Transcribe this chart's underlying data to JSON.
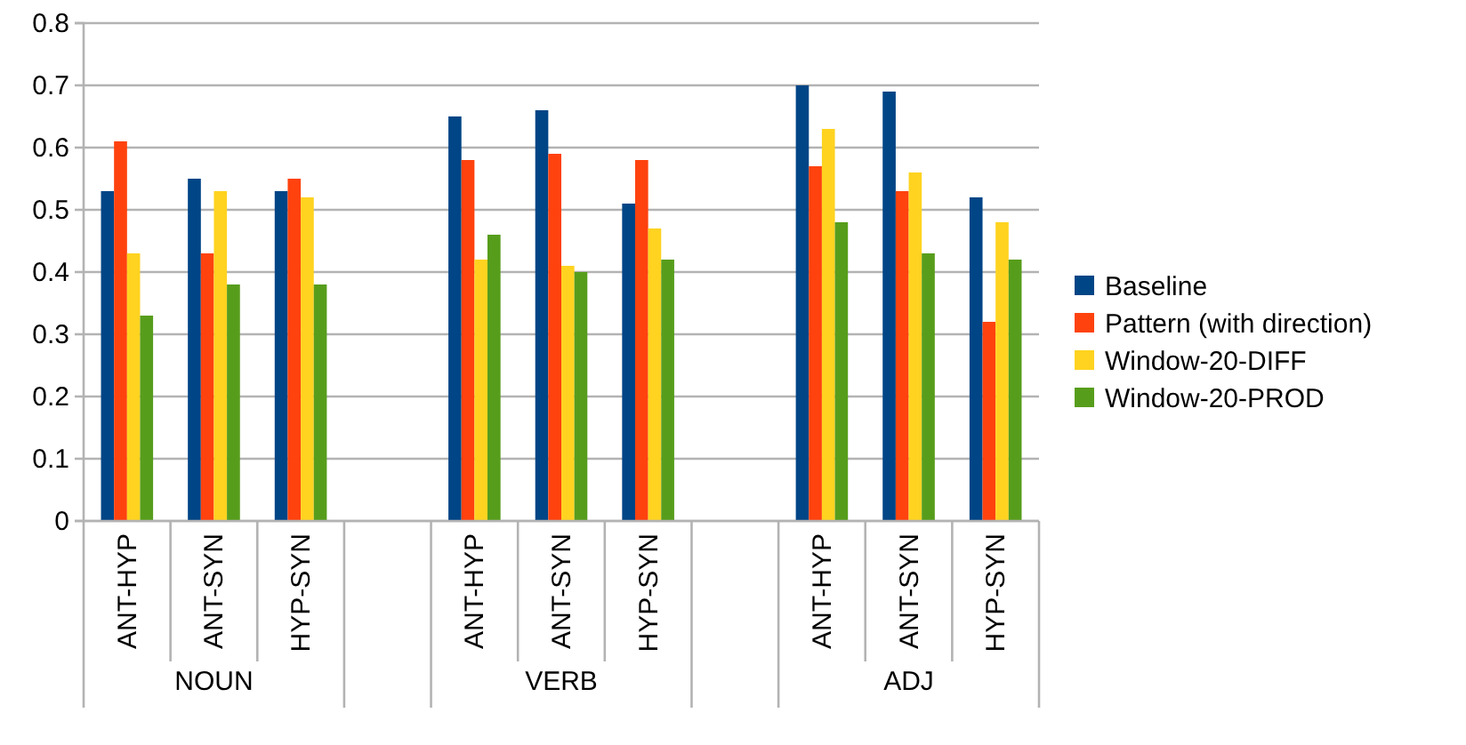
{
  "chart_data": {
    "type": "bar",
    "categories": [
      "ANT-HYP",
      "ANT-SYN",
      "HYP-SYN",
      null,
      "ANT-HYP",
      "ANT-SYN",
      "HYP-SYN",
      null,
      "ANT-HYP",
      "ANT-SYN",
      "HYP-SYN"
    ],
    "series": [
      {
        "name": "Baseline",
        "color": "#004586",
        "values": [
          0.53,
          0.55,
          0.53,
          null,
          0.65,
          0.66,
          0.51,
          null,
          0.7,
          0.69,
          0.52
        ]
      },
      {
        "name": "Pattern (with direction)",
        "color": "#ff420e",
        "values": [
          0.61,
          0.43,
          0.55,
          null,
          0.58,
          0.59,
          0.58,
          null,
          0.57,
          0.53,
          0.32
        ]
      },
      {
        "name": "Window-20-DIFF",
        "color": "#ffd320",
        "values": [
          0.43,
          0.53,
          0.52,
          null,
          0.42,
          0.41,
          0.47,
          null,
          0.63,
          0.56,
          0.48
        ]
      },
      {
        "name": "Window-20-PROD",
        "color": "#579d1c",
        "values": [
          0.33,
          0.38,
          0.38,
          null,
          0.46,
          0.4,
          0.42,
          null,
          0.48,
          0.43,
          0.42
        ]
      }
    ],
    "annotations": [
      "NOUN",
      "VERB",
      "ADJ"
    ],
    "ylim": [
      0,
      0.8
    ],
    "yticks": [
      0,
      0.1,
      0.2,
      0.3,
      0.4,
      0.5,
      0.6,
      0.7,
      0.8
    ],
    "grid": "y",
    "legend": "right"
  }
}
